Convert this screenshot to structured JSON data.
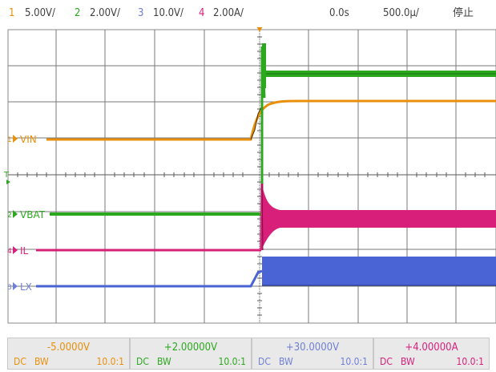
{
  "status_bar": {
    "channels": [
      {
        "num": "1",
        "scale": "5.00V/",
        "color": "#e8900b"
      },
      {
        "num": "2",
        "scale": "2.00V/",
        "color": "#2ca81f"
      },
      {
        "num": "3",
        "scale": "10.0V/",
        "color": "#6f7fd6"
      },
      {
        "num": "4",
        "scale": "2.00A/",
        "color": "#d8207a"
      }
    ],
    "time_position": "0.0s",
    "time_scale": "500.0µ/",
    "run_state": "停止"
  },
  "screen": {
    "trace_labels": {
      "ch1": {
        "num": "1",
        "name": "VIN"
      },
      "ch2": {
        "num": "2",
        "name": "VBAT"
      },
      "ch4": {
        "num": "4",
        "name": "IL"
      },
      "ch3": {
        "num": "3",
        "name": "LX"
      }
    },
    "trigger_marker": "T"
  },
  "channel_settings": [
    {
      "offset": "-5.0000V",
      "coupling": "DC",
      "bw": "BW",
      "probe": "10.0:1",
      "color": "#e8900b"
    },
    {
      "offset": "+2.00000V",
      "coupling": "DC",
      "bw": "BW",
      "probe": "10.0:1",
      "color": "#2ca81f"
    },
    {
      "offset": "+30.0000V",
      "coupling": "DC",
      "bw": "BW",
      "probe": "10.0:1",
      "color": "#6f7fd6"
    },
    {
      "offset": "+4.00000A",
      "coupling": "DC",
      "bw": "BW",
      "probe": "10.0:1",
      "color": "#d8207a"
    }
  ],
  "colors": {
    "ch1": "#e8900b",
    "ch2": "#2ca81f",
    "ch3": "#4a64d6",
    "ch4": "#d8207a",
    "grid": "#7a7a7a",
    "trigger": "#2ca81f",
    "time_marker": "#e8900b"
  }
}
